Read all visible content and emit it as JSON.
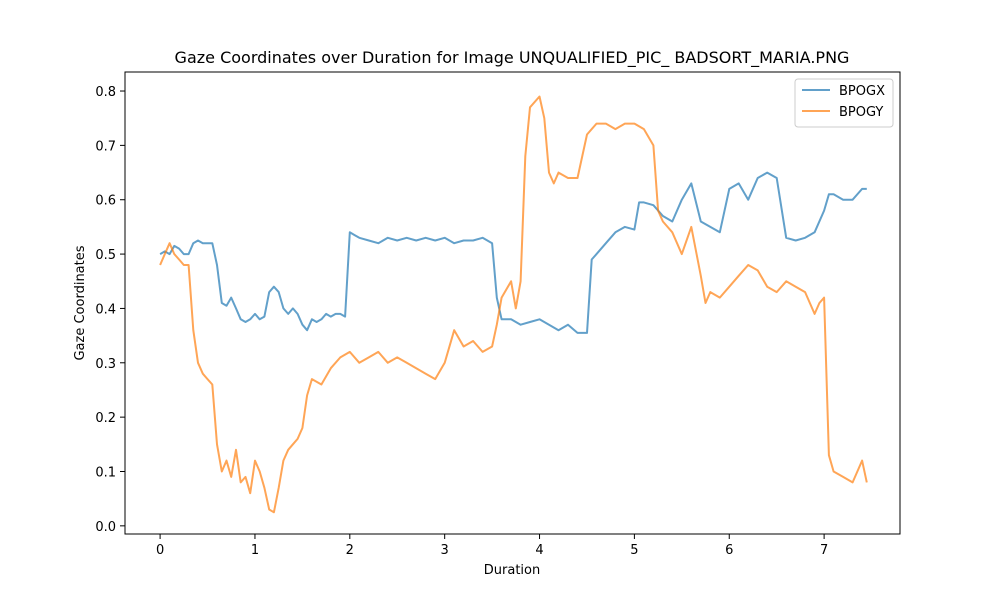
{
  "chart_data": {
    "type": "line",
    "title": "Gaze Coordinates over Duration for Image UNQUALIFIED_PIC_ BADSORT_MARIA.PNG",
    "xlabel": "Duration",
    "ylabel": "Gaze Coordinates",
    "xlim": [
      -0.37,
      7.8
    ],
    "ylim": [
      -0.015,
      0.835
    ],
    "xticks": [
      0,
      1,
      2,
      3,
      4,
      5,
      6,
      7
    ],
    "yticks": [
      0.0,
      0.1,
      0.2,
      0.3,
      0.4,
      0.5,
      0.6,
      0.7,
      0.8
    ],
    "grid": false,
    "legend_position": "top-right",
    "series": [
      {
        "name": "BPOGX",
        "color": "#1f77b4",
        "x": [
          0.0,
          0.05,
          0.1,
          0.15,
          0.2,
          0.25,
          0.3,
          0.35,
          0.4,
          0.45,
          0.5,
          0.55,
          0.6,
          0.65,
          0.7,
          0.75,
          0.8,
          0.85,
          0.9,
          0.95,
          1.0,
          1.05,
          1.1,
          1.15,
          1.2,
          1.25,
          1.3,
          1.35,
          1.4,
          1.45,
          1.5,
          1.55,
          1.6,
          1.65,
          1.7,
          1.75,
          1.8,
          1.85,
          1.9,
          1.95,
          2.0,
          2.05,
          2.1,
          2.2,
          2.3,
          2.4,
          2.5,
          2.6,
          2.7,
          2.8,
          2.9,
          3.0,
          3.1,
          3.2,
          3.3,
          3.4,
          3.5,
          3.55,
          3.6,
          3.7,
          3.8,
          3.9,
          4.0,
          4.1,
          4.2,
          4.3,
          4.4,
          4.5,
          4.55,
          4.6,
          4.7,
          4.8,
          4.9,
          5.0,
          5.05,
          5.1,
          5.2,
          5.3,
          5.4,
          5.5,
          5.6,
          5.7,
          5.8,
          5.9,
          6.0,
          6.1,
          6.2,
          6.3,
          6.4,
          6.5,
          6.6,
          6.7,
          6.8,
          6.9,
          7.0,
          7.05,
          7.1,
          7.2,
          7.3,
          7.4,
          7.45
        ],
        "values": [
          0.5,
          0.505,
          0.5,
          0.515,
          0.51,
          0.5,
          0.5,
          0.52,
          0.525,
          0.52,
          0.52,
          0.52,
          0.48,
          0.41,
          0.405,
          0.42,
          0.4,
          0.38,
          0.375,
          0.38,
          0.39,
          0.38,
          0.385,
          0.43,
          0.44,
          0.43,
          0.4,
          0.39,
          0.4,
          0.39,
          0.37,
          0.36,
          0.38,
          0.375,
          0.38,
          0.39,
          0.385,
          0.39,
          0.39,
          0.385,
          0.54,
          0.535,
          0.53,
          0.525,
          0.52,
          0.53,
          0.525,
          0.53,
          0.525,
          0.53,
          0.525,
          0.53,
          0.52,
          0.525,
          0.525,
          0.53,
          0.52,
          0.42,
          0.38,
          0.38,
          0.37,
          0.375,
          0.38,
          0.37,
          0.36,
          0.37,
          0.355,
          0.355,
          0.49,
          0.5,
          0.52,
          0.54,
          0.55,
          0.545,
          0.595,
          0.595,
          0.59,
          0.57,
          0.56,
          0.6,
          0.63,
          0.56,
          0.55,
          0.54,
          0.62,
          0.63,
          0.6,
          0.64,
          0.65,
          0.64,
          0.53,
          0.525,
          0.53,
          0.54,
          0.58,
          0.61,
          0.61,
          0.6,
          0.6,
          0.62,
          0.62
        ]
      },
      {
        "name": "BPOGY",
        "color": "#ff7f0e",
        "x": [
          0.0,
          0.05,
          0.1,
          0.15,
          0.2,
          0.25,
          0.3,
          0.35,
          0.4,
          0.45,
          0.5,
          0.55,
          0.6,
          0.65,
          0.7,
          0.75,
          0.8,
          0.85,
          0.9,
          0.95,
          1.0,
          1.05,
          1.1,
          1.15,
          1.2,
          1.25,
          1.3,
          1.35,
          1.4,
          1.45,
          1.5,
          1.55,
          1.6,
          1.7,
          1.8,
          1.9,
          2.0,
          2.1,
          2.2,
          2.3,
          2.4,
          2.5,
          2.6,
          2.7,
          2.8,
          2.9,
          3.0,
          3.1,
          3.2,
          3.3,
          3.4,
          3.5,
          3.55,
          3.6,
          3.7,
          3.75,
          3.8,
          3.85,
          3.9,
          4.0,
          4.05,
          4.1,
          4.15,
          4.2,
          4.3,
          4.4,
          4.5,
          4.6,
          4.7,
          4.8,
          4.9,
          5.0,
          5.1,
          5.2,
          5.25,
          5.3,
          5.4,
          5.5,
          5.6,
          5.7,
          5.75,
          5.8,
          5.9,
          6.0,
          6.1,
          6.2,
          6.3,
          6.4,
          6.5,
          6.6,
          6.7,
          6.8,
          6.9,
          6.95,
          7.0,
          7.05,
          7.1,
          7.2,
          7.3,
          7.4,
          7.45
        ],
        "values": [
          0.48,
          0.5,
          0.52,
          0.5,
          0.49,
          0.48,
          0.48,
          0.36,
          0.3,
          0.28,
          0.27,
          0.26,
          0.15,
          0.1,
          0.12,
          0.09,
          0.14,
          0.08,
          0.09,
          0.06,
          0.12,
          0.1,
          0.07,
          0.03,
          0.025,
          0.07,
          0.12,
          0.14,
          0.15,
          0.16,
          0.18,
          0.24,
          0.27,
          0.26,
          0.29,
          0.31,
          0.32,
          0.3,
          0.31,
          0.32,
          0.3,
          0.31,
          0.3,
          0.29,
          0.28,
          0.27,
          0.3,
          0.36,
          0.33,
          0.34,
          0.32,
          0.33,
          0.37,
          0.42,
          0.45,
          0.4,
          0.45,
          0.68,
          0.77,
          0.79,
          0.75,
          0.65,
          0.63,
          0.65,
          0.64,
          0.64,
          0.72,
          0.74,
          0.74,
          0.73,
          0.74,
          0.74,
          0.73,
          0.7,
          0.58,
          0.56,
          0.54,
          0.5,
          0.55,
          0.46,
          0.41,
          0.43,
          0.42,
          0.44,
          0.46,
          0.48,
          0.47,
          0.44,
          0.43,
          0.45,
          0.44,
          0.43,
          0.39,
          0.41,
          0.42,
          0.13,
          0.1,
          0.09,
          0.08,
          0.12,
          0.08
        ]
      }
    ]
  }
}
